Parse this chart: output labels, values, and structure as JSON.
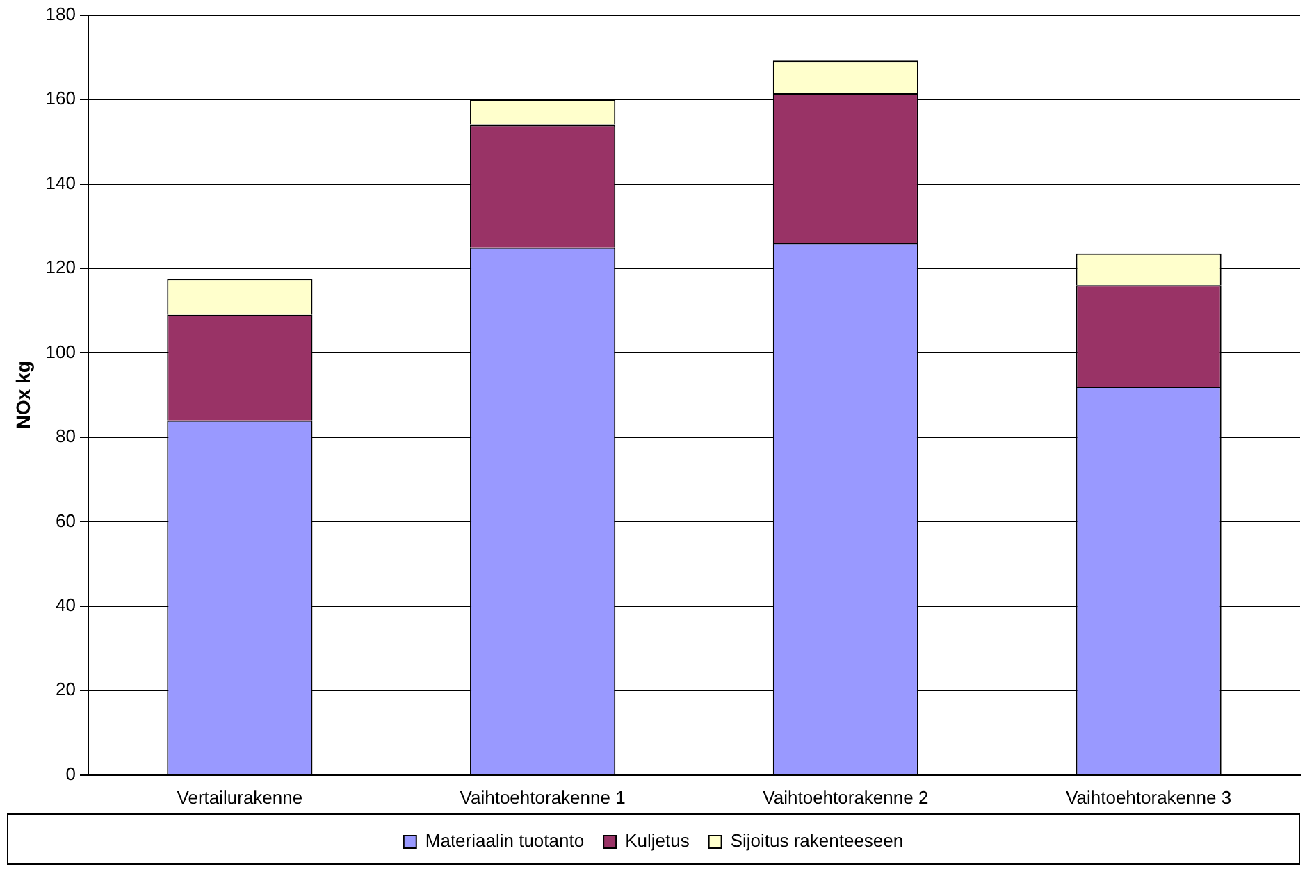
{
  "chart_data": {
    "type": "bar",
    "ylabel": "NOx kg",
    "stacked": true,
    "categories": [
      "Vertailurakenne",
      "Vaihtoehtorakenne 1",
      "Vaihtoehtorakenne 2",
      "Vaihtoehtorakenne 3"
    ],
    "series": [
      {
        "name": "Materiaalin tuotanto",
        "color": "#9999ff",
        "values": [
          84,
          125,
          126,
          92
        ]
      },
      {
        "name": "Kuljetus",
        "color": "#993366",
        "values": [
          25,
          29,
          35.5,
          24
        ]
      },
      {
        "name": "Sijoitus rakenteeseen",
        "color": "#ffffcc",
        "values": [
          8.5,
          6,
          7.7,
          7.5
        ]
      }
    ],
    "ylim": [
      0,
      180
    ],
    "yticks": [
      0,
      20,
      40,
      60,
      80,
      100,
      120,
      140,
      160,
      180
    ],
    "grid": "y",
    "legend": "bottom"
  }
}
